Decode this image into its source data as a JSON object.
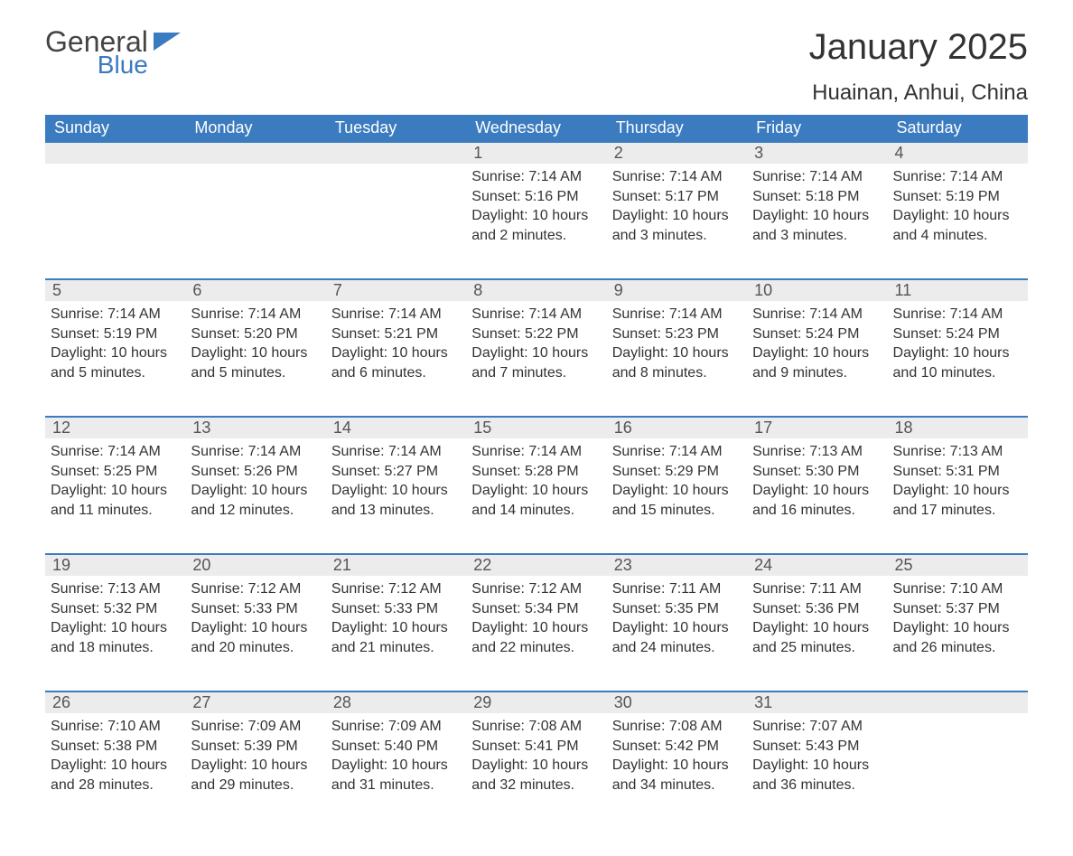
{
  "logo": {
    "general": "General",
    "blue": "Blue",
    "flag_color": "#3b7bbf"
  },
  "title": "January 2025",
  "location": "Huainan, Anhui, China",
  "header_bg": "#3b7bbf",
  "daynum_bg": "#ececec",
  "weekdays": [
    "Sunday",
    "Monday",
    "Tuesday",
    "Wednesday",
    "Thursday",
    "Friday",
    "Saturday"
  ],
  "weeks": [
    [
      null,
      null,
      null,
      {
        "n": "1",
        "sr": "Sunrise: 7:14 AM",
        "ss": "Sunset: 5:16 PM",
        "dl": "Daylight: 10 hours and 2 minutes."
      },
      {
        "n": "2",
        "sr": "Sunrise: 7:14 AM",
        "ss": "Sunset: 5:17 PM",
        "dl": "Daylight: 10 hours and 3 minutes."
      },
      {
        "n": "3",
        "sr": "Sunrise: 7:14 AM",
        "ss": "Sunset: 5:18 PM",
        "dl": "Daylight: 10 hours and 3 minutes."
      },
      {
        "n": "4",
        "sr": "Sunrise: 7:14 AM",
        "ss": "Sunset: 5:19 PM",
        "dl": "Daylight: 10 hours and 4 minutes."
      }
    ],
    [
      {
        "n": "5",
        "sr": "Sunrise: 7:14 AM",
        "ss": "Sunset: 5:19 PM",
        "dl": "Daylight: 10 hours and 5 minutes."
      },
      {
        "n": "6",
        "sr": "Sunrise: 7:14 AM",
        "ss": "Sunset: 5:20 PM",
        "dl": "Daylight: 10 hours and 5 minutes."
      },
      {
        "n": "7",
        "sr": "Sunrise: 7:14 AM",
        "ss": "Sunset: 5:21 PM",
        "dl": "Daylight: 10 hours and 6 minutes."
      },
      {
        "n": "8",
        "sr": "Sunrise: 7:14 AM",
        "ss": "Sunset: 5:22 PM",
        "dl": "Daylight: 10 hours and 7 minutes."
      },
      {
        "n": "9",
        "sr": "Sunrise: 7:14 AM",
        "ss": "Sunset: 5:23 PM",
        "dl": "Daylight: 10 hours and 8 minutes."
      },
      {
        "n": "10",
        "sr": "Sunrise: 7:14 AM",
        "ss": "Sunset: 5:24 PM",
        "dl": "Daylight: 10 hours and 9 minutes."
      },
      {
        "n": "11",
        "sr": "Sunrise: 7:14 AM",
        "ss": "Sunset: 5:24 PM",
        "dl": "Daylight: 10 hours and 10 minutes."
      }
    ],
    [
      {
        "n": "12",
        "sr": "Sunrise: 7:14 AM",
        "ss": "Sunset: 5:25 PM",
        "dl": "Daylight: 10 hours and 11 minutes."
      },
      {
        "n": "13",
        "sr": "Sunrise: 7:14 AM",
        "ss": "Sunset: 5:26 PM",
        "dl": "Daylight: 10 hours and 12 minutes."
      },
      {
        "n": "14",
        "sr": "Sunrise: 7:14 AM",
        "ss": "Sunset: 5:27 PM",
        "dl": "Daylight: 10 hours and 13 minutes."
      },
      {
        "n": "15",
        "sr": "Sunrise: 7:14 AM",
        "ss": "Sunset: 5:28 PM",
        "dl": "Daylight: 10 hours and 14 minutes."
      },
      {
        "n": "16",
        "sr": "Sunrise: 7:14 AM",
        "ss": "Sunset: 5:29 PM",
        "dl": "Daylight: 10 hours and 15 minutes."
      },
      {
        "n": "17",
        "sr": "Sunrise: 7:13 AM",
        "ss": "Sunset: 5:30 PM",
        "dl": "Daylight: 10 hours and 16 minutes."
      },
      {
        "n": "18",
        "sr": "Sunrise: 7:13 AM",
        "ss": "Sunset: 5:31 PM",
        "dl": "Daylight: 10 hours and 17 minutes."
      }
    ],
    [
      {
        "n": "19",
        "sr": "Sunrise: 7:13 AM",
        "ss": "Sunset: 5:32 PM",
        "dl": "Daylight: 10 hours and 18 minutes."
      },
      {
        "n": "20",
        "sr": "Sunrise: 7:12 AM",
        "ss": "Sunset: 5:33 PM",
        "dl": "Daylight: 10 hours and 20 minutes."
      },
      {
        "n": "21",
        "sr": "Sunrise: 7:12 AM",
        "ss": "Sunset: 5:33 PM",
        "dl": "Daylight: 10 hours and 21 minutes."
      },
      {
        "n": "22",
        "sr": "Sunrise: 7:12 AM",
        "ss": "Sunset: 5:34 PM",
        "dl": "Daylight: 10 hours and 22 minutes."
      },
      {
        "n": "23",
        "sr": "Sunrise: 7:11 AM",
        "ss": "Sunset: 5:35 PM",
        "dl": "Daylight: 10 hours and 24 minutes."
      },
      {
        "n": "24",
        "sr": "Sunrise: 7:11 AM",
        "ss": "Sunset: 5:36 PM",
        "dl": "Daylight: 10 hours and 25 minutes."
      },
      {
        "n": "25",
        "sr": "Sunrise: 7:10 AM",
        "ss": "Sunset: 5:37 PM",
        "dl": "Daylight: 10 hours and 26 minutes."
      }
    ],
    [
      {
        "n": "26",
        "sr": "Sunrise: 7:10 AM",
        "ss": "Sunset: 5:38 PM",
        "dl": "Daylight: 10 hours and 28 minutes."
      },
      {
        "n": "27",
        "sr": "Sunrise: 7:09 AM",
        "ss": "Sunset: 5:39 PM",
        "dl": "Daylight: 10 hours and 29 minutes."
      },
      {
        "n": "28",
        "sr": "Sunrise: 7:09 AM",
        "ss": "Sunset: 5:40 PM",
        "dl": "Daylight: 10 hours and 31 minutes."
      },
      {
        "n": "29",
        "sr": "Sunrise: 7:08 AM",
        "ss": "Sunset: 5:41 PM",
        "dl": "Daylight: 10 hours and 32 minutes."
      },
      {
        "n": "30",
        "sr": "Sunrise: 7:08 AM",
        "ss": "Sunset: 5:42 PM",
        "dl": "Daylight: 10 hours and 34 minutes."
      },
      {
        "n": "31",
        "sr": "Sunrise: 7:07 AM",
        "ss": "Sunset: 5:43 PM",
        "dl": "Daylight: 10 hours and 36 minutes."
      },
      null
    ]
  ]
}
